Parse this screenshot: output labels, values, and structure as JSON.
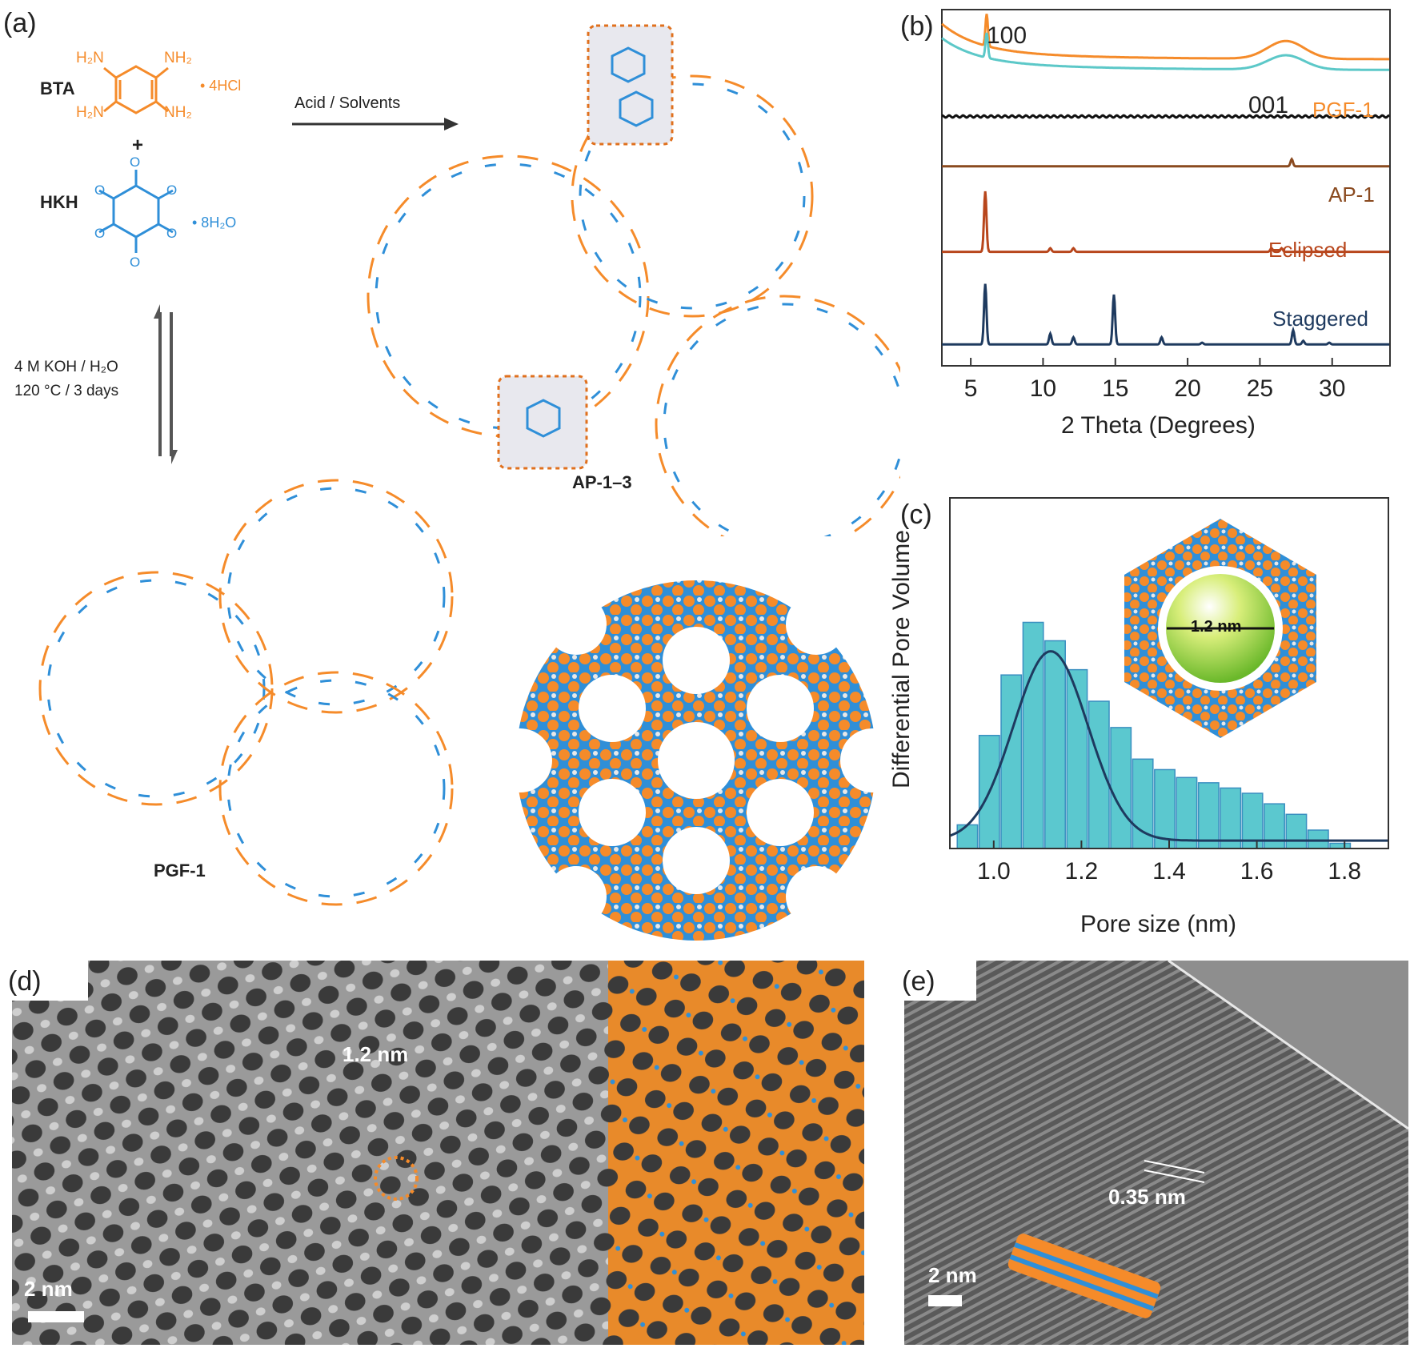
{
  "panel_labels": {
    "a": "(a)",
    "b": "(b)",
    "c": "(c)",
    "d": "(d)",
    "e": "(e)"
  },
  "scheme": {
    "bta": {
      "name": "BTA",
      "h2n_top": "H₂N",
      "nh2_top": "NH₂",
      "h2n_bot": "H₂N",
      "nh2_bot": "NH₂",
      "salt": "• 4HCl"
    },
    "plus": "+",
    "hkh": {
      "name": "HKH",
      "hydrate": "• 8H₂O"
    },
    "arrow_label": "Acid / Solvents",
    "conditions_line1": "4 M KOH / H₂O",
    "conditions_line2": "120 °C / 3 days",
    "ap_label": "AP-1–3",
    "pgf_label": "PGF-1",
    "n_atom": "N",
    "o_atom": "O"
  },
  "panel_b": {
    "chart_data": {
      "type": "line",
      "xlabel": "2 Theta (Degrees)",
      "ylabel": "",
      "xlim": [
        3,
        34
      ],
      "xticks": [
        5,
        10,
        15,
        20,
        25,
        30
      ],
      "peak_labels": [
        "100",
        "001"
      ],
      "series": [
        {
          "name": "PGF-1",
          "color": "#f58b2a",
          "offset": 0.86,
          "peaks": [
            [
              6.1,
              0.09
            ],
            [
              26.8,
              0.05
            ]
          ],
          "decay": 0.08
        },
        {
          "name": "",
          "color": "#5cc8c8",
          "offset": 0.83,
          "peaks": [
            [
              6.1,
              0.07
            ],
            [
              26.8,
              0.04
            ]
          ],
          "decay": 0.07
        },
        {
          "name": "",
          "color": "#111111",
          "offset": 0.7,
          "peaks": [],
          "decay": 0.0
        },
        {
          "name": "AP-1",
          "color": "#8a4a1f",
          "offset": 0.56,
          "peaks": [
            [
              27.2,
              0.02
            ]
          ],
          "decay": 0.0
        },
        {
          "name": "Eclipsed",
          "color": "#b8461c",
          "offset": 0.32,
          "peaks": [
            [
              6.0,
              0.17
            ],
            [
              10.5,
              0.01
            ],
            [
              12.1,
              0.01
            ],
            [
              25.8,
              0.01
            ],
            [
              26.5,
              0.01
            ]
          ],
          "decay": 0.0
        },
        {
          "name": "Staggered",
          "color": "#1e3a5f",
          "offset": 0.06,
          "peaks": [
            [
              6.0,
              0.17
            ],
            [
              10.5,
              0.03
            ],
            [
              12.1,
              0.02
            ],
            [
              14.9,
              0.14
            ],
            [
              18.2,
              0.02
            ],
            [
              21.0,
              0.005
            ],
            [
              27.3,
              0.04
            ],
            [
              28.0,
              0.01
            ],
            [
              29.8,
              0.005
            ]
          ],
          "decay": 0.0
        }
      ]
    }
  },
  "panel_c": {
    "chart_data": {
      "type": "bar",
      "xlabel": "Pore size (nm)",
      "ylabel": "Differential Pore Volume",
      "xlim": [
        0.9,
        1.9
      ],
      "xticks": [
        1.0,
        1.2,
        1.4,
        1.6,
        1.8
      ],
      "bar_centers": [
        0.94,
        0.99,
        1.04,
        1.09,
        1.14,
        1.19,
        1.24,
        1.29,
        1.34,
        1.39,
        1.44,
        1.49,
        1.54,
        1.59,
        1.64,
        1.69,
        1.74,
        1.79,
        1.84
      ],
      "bar_values": [
        0.09,
        0.43,
        0.66,
        0.86,
        0.79,
        0.68,
        0.56,
        0.46,
        0.34,
        0.3,
        0.27,
        0.25,
        0.23,
        0.21,
        0.17,
        0.13,
        0.07,
        0.02,
        0.0
      ],
      "fit_line": {
        "center": 1.13,
        "sigma": 0.085,
        "amplitude": 0.72,
        "baseline": 0.03
      },
      "inset_label": "1.2 nm",
      "bar_color": "#5bc8cf",
      "line_color": "#1e3a5f"
    }
  },
  "panel_d": {
    "pore_label": "1.2 nm",
    "scale_label": "2 nm"
  },
  "panel_e": {
    "spacing_label": "0.35 nm",
    "scale_label": "2 nm"
  },
  "colors": {
    "orange": "#f58b2a",
    "blue": "#2f8fd8",
    "white_atom": "#e8e8e8"
  }
}
